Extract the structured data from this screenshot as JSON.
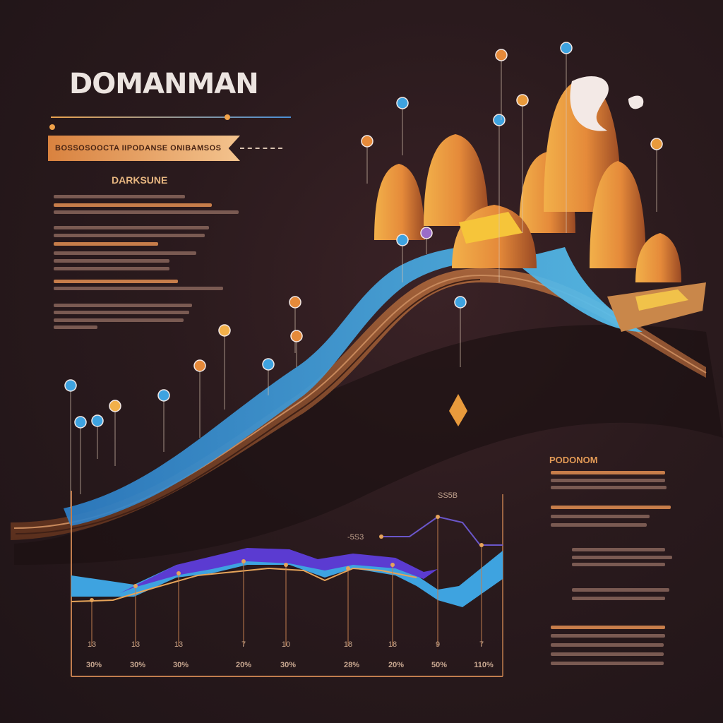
{
  "header": {
    "title": "DOMANMAN",
    "ribbon_text": "BOSSOSOOCTA IIPODANSE ONIBAMSOS"
  },
  "left_panel": {
    "subheading": "DARKSUNE"
  },
  "right_panel": {
    "heading": "PODONOM"
  },
  "chart": {
    "tag_top": "SS5B",
    "tag_mid": "-5S3",
    "count_labels": [
      "13",
      "13",
      "13",
      "7",
      "10",
      "18",
      "18",
      "9",
      "7"
    ],
    "percent_labels": [
      "30%",
      "30%",
      "30%",
      "20%",
      "30%",
      "28%",
      "20%",
      "50%",
      "110%"
    ]
  },
  "colors": {
    "background": "#2a1a1d",
    "accent_orange": "#e29a56",
    "accent_blue": "#3ea3e0",
    "accent_purple": "#5b3bd1",
    "wood_brown": "#7b4327"
  },
  "icons": [
    "pin-marker-icon",
    "gem-icon",
    "mushroom-tower-icon"
  ]
}
